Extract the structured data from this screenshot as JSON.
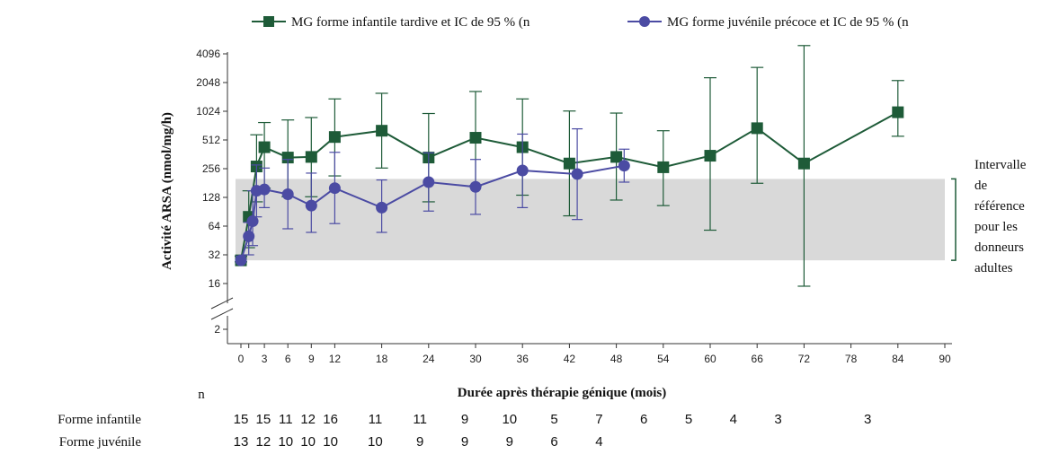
{
  "chart_data": {
    "type": "line",
    "title": "",
    "xlabel": "Durée après thérapie génique (mois)",
    "ylabel": "Activité ARSA (nmol/mg/h)",
    "y_scale": "log2",
    "ylim": [
      2,
      4096
    ],
    "y_ticks": [
      2,
      16,
      32,
      64,
      128,
      256,
      512,
      1024,
      2048,
      4096
    ],
    "xlim": [
      0,
      90
    ],
    "x_ticks": [
      0,
      1,
      3,
      6,
      9,
      12,
      18,
      24,
      30,
      36,
      42,
      48,
      54,
      60,
      66,
      72,
      78,
      84,
      90
    ],
    "legend_position": "top",
    "grid": false,
    "series": [
      {
        "name": "MG  forme infantile tardive et IC de 95 % (n",
        "color": "#1e5b38",
        "marker": "square",
        "points": [
          {
            "x": 0,
            "y": 28,
            "lo": 27,
            "hi": 31
          },
          {
            "x": 1,
            "y": 80,
            "lo": 38,
            "hi": 150
          },
          {
            "x": 2,
            "y": 270,
            "lo": 115,
            "hi": 580
          },
          {
            "x": 3,
            "y": 430,
            "lo": 160,
            "hi": 780
          },
          {
            "x": 6,
            "y": 335,
            "lo": 130,
            "hi": 830
          },
          {
            "x": 9,
            "y": 340,
            "lo": 130,
            "hi": 880
          },
          {
            "x": 12,
            "y": 550,
            "lo": 215,
            "hi": 1380
          },
          {
            "x": 18,
            "y": 640,
            "lo": 260,
            "hi": 1580
          },
          {
            "x": 24,
            "y": 335,
            "lo": 115,
            "hi": 970
          },
          {
            "x": 30,
            "y": 540,
            "lo": 170,
            "hi": 1650
          },
          {
            "x": 36,
            "y": 430,
            "lo": 135,
            "hi": 1380
          },
          {
            "x": 42,
            "y": 290,
            "lo": 82,
            "hi": 1030
          },
          {
            "x": 48,
            "y": 340,
            "lo": 120,
            "hi": 980
          },
          {
            "x": 54,
            "y": 265,
            "lo": 105,
            "hi": 640
          },
          {
            "x": 60,
            "y": 350,
            "lo": 58,
            "hi": 2300
          },
          {
            "x": 66,
            "y": 680,
            "lo": 180,
            "hi": 2950
          },
          {
            "x": 72,
            "y": 290,
            "lo": 15,
            "hi": 5000
          },
          {
            "x": 84,
            "y": 1000,
            "lo": 560,
            "hi": 2150
          }
        ]
      },
      {
        "name": "MG  forme juvénile précoce et IC de 95 % (n",
        "color": "#4b4ba3",
        "marker": "circle",
        "points": [
          {
            "x": 0,
            "y": 28,
            "lo": 27,
            "hi": 31
          },
          {
            "x": 1,
            "y": 50,
            "lo": 32,
            "hi": 70
          },
          {
            "x": 1.5,
            "y": 72,
            "lo": 40,
            "hi": 150
          },
          {
            "x": 2,
            "y": 150,
            "lo": 80,
            "hi": 280
          },
          {
            "x": 3,
            "y": 155,
            "lo": 100,
            "hi": 260
          },
          {
            "x": 6,
            "y": 138,
            "lo": 60,
            "hi": 320
          },
          {
            "x": 9,
            "y": 105,
            "lo": 55,
            "hi": 230
          },
          {
            "x": 12,
            "y": 160,
            "lo": 68,
            "hi": 380
          },
          {
            "x": 18,
            "y": 100,
            "lo": 55,
            "hi": 195
          },
          {
            "x": 24,
            "y": 185,
            "lo": 92,
            "hi": 375
          },
          {
            "x": 30,
            "y": 165,
            "lo": 85,
            "hi": 320
          },
          {
            "x": 36,
            "y": 245,
            "lo": 100,
            "hi": 590
          },
          {
            "x": 43,
            "y": 225,
            "lo": 75,
            "hi": 670
          },
          {
            "x": 49,
            "y": 275,
            "lo": 185,
            "hi": 410
          }
        ]
      }
    ],
    "reference_band": {
      "low": 28,
      "high": 200,
      "color": "#d9d9d9"
    },
    "annotation": [
      "Intervalle",
      "de",
      "référence",
      "pour les",
      "donneurs",
      "adultes"
    ],
    "n_table": {
      "header": "n",
      "rows": [
        {
          "label": "Forme infantile",
          "cells": [
            {
              "x": 0,
              "text": "15"
            },
            {
              "x": 3,
              "text": "15"
            },
            {
              "x": 6,
              "text": "11"
            },
            {
              "x": 9,
              "text": "12"
            },
            {
              "x": 12,
              "text": "16"
            },
            {
              "x": 18,
              "text": "11"
            },
            {
              "x": 24,
              "text": "11"
            },
            {
              "x": 30,
              "text": "9"
            },
            {
              "x": 36,
              "text": "10"
            },
            {
              "x": 42,
              "text": "5"
            },
            {
              "x": 48,
              "text": "7"
            },
            {
              "x": 54,
              "text": "6"
            },
            {
              "x": 60,
              "text": "5"
            },
            {
              "x": 66,
              "text": "4"
            },
            {
              "x": 72,
              "text": "3"
            },
            {
              "x": 84,
              "text": "3"
            }
          ]
        },
        {
          "label": "Forme juvénile",
          "cells": [
            {
              "x": 0,
              "text": "13"
            },
            {
              "x": 3,
              "text": "12"
            },
            {
              "x": 6,
              "text": "10"
            },
            {
              "x": 9,
              "text": "10"
            },
            {
              "x": 12,
              "text": "10"
            },
            {
              "x": 18,
              "text": "10"
            },
            {
              "x": 24,
              "text": "9"
            },
            {
              "x": 30,
              "text": "9"
            },
            {
              "x": 36,
              "text": "9"
            },
            {
              "x": 42,
              "text": "6"
            },
            {
              "x": 48,
              "text": "4"
            }
          ]
        }
      ]
    }
  }
}
